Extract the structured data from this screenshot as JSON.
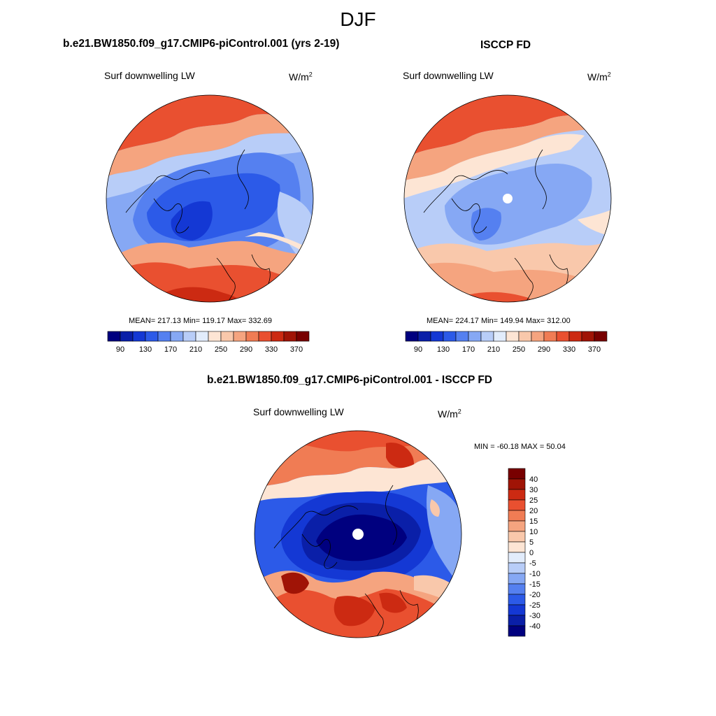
{
  "figure": {
    "season": "DJF"
  },
  "panels": {
    "model": {
      "title": "b.e21.BW1850.f09_g17.CMIP6-piControl.001 (yrs 2-19)",
      "variable": "Surf downwelling LW",
      "units_base": "W/m",
      "units_exp": "2",
      "stats": "MEAN= 217.13  Min= 119.17  Max= 332.69"
    },
    "obs": {
      "title": "ISCCP FD",
      "variable": "Surf downwelling LW",
      "units_base": "W/m",
      "units_exp": "2",
      "stats": "MEAN= 224.17  Min= 149.94  Max= 312.00"
    },
    "diff": {
      "title": "b.e21.BW1850.f09_g17.CMIP6-piControl.001 - ISCCP FD",
      "variable": "Surf downwelling LW",
      "units_base": "W/m",
      "units_exp": "2",
      "stats": "MIN = -60.18 MAX =  50.04"
    }
  },
  "colorbars": {
    "absolute": {
      "colors": [
        "#00007f",
        "#0a1fa8",
        "#1438d4",
        "#2c5ae8",
        "#5580f0",
        "#86a8f4",
        "#b8cdf8",
        "#e2ecfb",
        "#fde5d4",
        "#f9c8ab",
        "#f5a47f",
        "#f07c54",
        "#e95030",
        "#cc2a12",
        "#a01406",
        "#780000"
      ],
      "tick_labels": [
        "90",
        "130",
        "170",
        "210",
        "250",
        "290",
        "330",
        "370"
      ]
    },
    "difference": {
      "colors": [
        "#780000",
        "#a01406",
        "#cc2a12",
        "#e95030",
        "#f07c54",
        "#f5a47f",
        "#f9c8ab",
        "#fde5d4",
        "#e2ecfb",
        "#b8cdf8",
        "#86a8f4",
        "#5580f0",
        "#2c5ae8",
        "#1438d4",
        "#0a1fa8",
        "#00007f"
      ],
      "tick_labels": [
        "40",
        "30",
        "25",
        "20",
        "15",
        "10",
        "5",
        "0",
        "-5",
        "-10",
        "-15",
        "-20",
        "-25",
        "-30",
        "-40"
      ]
    }
  }
}
